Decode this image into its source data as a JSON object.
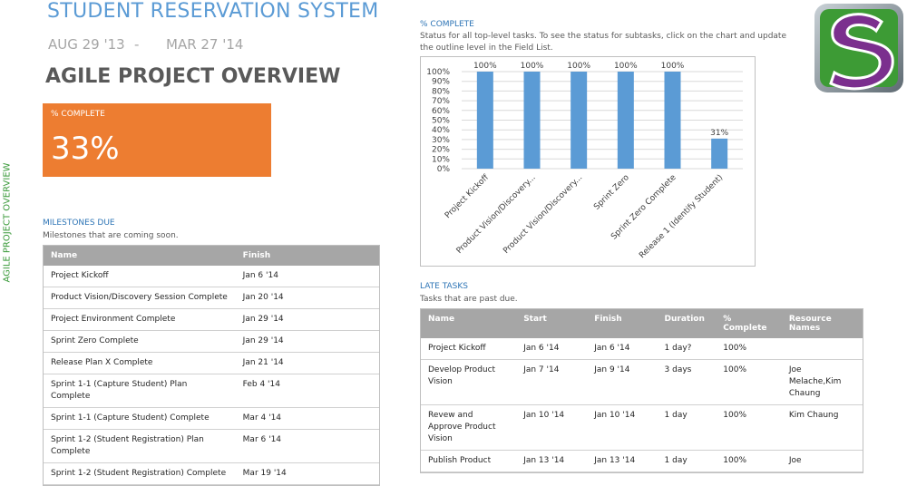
{
  "header": {
    "title": "STUDENT RESERVATION SYSTEM",
    "start": "AUG 29 '13",
    "separator": "-",
    "end": "MAR 27 '14",
    "subtitle": "AGILE PROJECT OVERVIEW"
  },
  "side_label": "AGILE PROJECT OVERVIEW",
  "complete_card": {
    "label": "% COMPLETE",
    "value": "33%"
  },
  "milestones": {
    "title": "MILESTONES DUE",
    "description": "Milestones that are coming soon.",
    "columns": [
      "Name",
      "Finish"
    ],
    "rows": [
      [
        "Project Kickoff",
        "Jan 6 '14"
      ],
      [
        "Product Vision/Discovery Session Complete",
        "Jan 20 '14"
      ],
      [
        "Project Environment Complete",
        "Jan 29 '14"
      ],
      [
        "Sprint Zero Complete",
        "Jan 29 '14"
      ],
      [
        "Release Plan X Complete",
        "Jan 21 '14"
      ],
      [
        "Sprint 1-1 (Capture Student) Plan Complete",
        "Feb 4 '14"
      ],
      [
        "Sprint 1-1 (Capture Student) Complete",
        "Mar 4 '14"
      ],
      [
        "Sprint 1-2 (Student Registration) Plan Complete",
        "Mar 6 '14"
      ],
      [
        "Sprint 1-2 (Student Registration) Complete",
        "Mar 19 '14"
      ]
    ]
  },
  "percent_chart": {
    "title": "% COMPLETE",
    "description": "Status for all top-level tasks. To see the status for subtasks, click on the chart and update the outline level in the Field List."
  },
  "chart_data": {
    "type": "bar",
    "categories": [
      "Project Kickoff",
      "Product Vision/Discovery...",
      "Product Vision/Discovery...",
      "Sprint Zero",
      "Sprint Zero Complete",
      "Release 1 (Identify Student)"
    ],
    "values": [
      100,
      100,
      100,
      100,
      100,
      31
    ],
    "value_labels": [
      "100%",
      "100%",
      "100%",
      "100%",
      "100%",
      "31%"
    ],
    "color": "#5b9bd5",
    "ylim": [
      0,
      100
    ],
    "yticks": [
      {
        "value": 0,
        "label": "0%"
      },
      {
        "value": 10,
        "label": "10%"
      },
      {
        "value": 20,
        "label": "20%"
      },
      {
        "value": 30,
        "label": "30%"
      },
      {
        "value": 40,
        "label": "40%"
      },
      {
        "value": 50,
        "label": "50%"
      },
      {
        "value": 60,
        "label": "60%"
      },
      {
        "value": 70,
        "label": "70%"
      },
      {
        "value": 80,
        "label": "80%"
      },
      {
        "value": 90,
        "label": "90%"
      },
      {
        "value": 100,
        "label": "100%"
      }
    ],
    "grid": true
  },
  "late_tasks": {
    "title": "LATE TASKS",
    "description": "Tasks that are past due.",
    "columns": [
      "Name",
      "Start",
      "Finish",
      "Duration",
      "% Complete",
      "Resource Names"
    ],
    "rows": [
      [
        "Project Kickoff",
        "Jan 6 '14",
        "Jan 6 '14",
        "1 day?",
        "100%",
        null
      ],
      [
        "Develop Product Vision",
        "Jan 7 '14",
        "Jan 9 '14",
        "3 days",
        "100%",
        "Joe Melache,Kim Chaung"
      ],
      [
        "Revew and Approve Product Vision",
        "Jan 10 '14",
        "Jan 10 '14",
        "1 day",
        "100%",
        "Kim Chaung"
      ],
      [
        "Publish Product",
        "Jan 13 '14",
        "Jan 13 '14",
        "1 day",
        "100%",
        "Joe"
      ]
    ]
  }
}
